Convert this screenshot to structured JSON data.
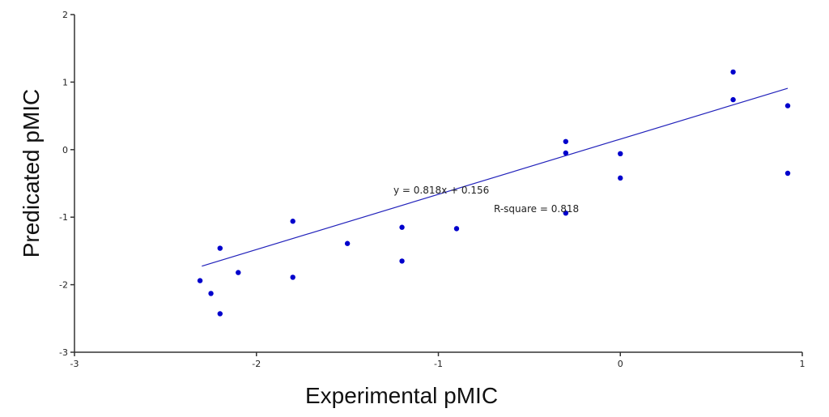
{
  "chart_data": {
    "type": "scatter",
    "title": "",
    "xlabel": "Experimental pMIC",
    "ylabel": "Predicated pMIC",
    "xlim": [
      -3,
      1
    ],
    "ylim": [
      -3,
      2
    ],
    "xticks": [
      -3,
      -2,
      -1,
      0,
      1
    ],
    "yticks": [
      -3,
      -2,
      -1,
      0,
      1,
      2
    ],
    "xtick_labels": [
      "-3",
      "-2",
      "-1",
      "0",
      "1"
    ],
    "ytick_labels": [
      "-3",
      "-2",
      "-1",
      "0",
      "1",
      "2"
    ],
    "grid": false,
    "point_color": "#0000cc",
    "line_color": "#2222bb",
    "points": [
      {
        "x": -2.31,
        "y": -1.94
      },
      {
        "x": -2.25,
        "y": -2.13
      },
      {
        "x": -2.2,
        "y": -1.46
      },
      {
        "x": -2.2,
        "y": -2.43
      },
      {
        "x": -2.1,
        "y": -1.82
      },
      {
        "x": -1.8,
        "y": -1.06
      },
      {
        "x": -1.8,
        "y": -1.89
      },
      {
        "x": -1.5,
        "y": -1.39
      },
      {
        "x": -1.2,
        "y": -1.15
      },
      {
        "x": -1.2,
        "y": -1.65
      },
      {
        "x": -0.9,
        "y": -1.17
      },
      {
        "x": -0.3,
        "y": 0.12
      },
      {
        "x": -0.3,
        "y": -0.05
      },
      {
        "x": -0.3,
        "y": -0.94
      },
      {
        "x": 0.0,
        "y": -0.06
      },
      {
        "x": 0.0,
        "y": -0.42
      },
      {
        "x": 0.62,
        "y": 1.15
      },
      {
        "x": 0.62,
        "y": 0.74
      },
      {
        "x": 0.92,
        "y": 0.65
      },
      {
        "x": 0.92,
        "y": -0.35
      }
    ],
    "trendline": {
      "slope": 0.818,
      "intercept": 0.156,
      "x_start": -2.3,
      "x_end": 0.92,
      "equation_text": "y = 0.818x + 0.156",
      "r_square_text": "R-square = 0.818"
    }
  }
}
